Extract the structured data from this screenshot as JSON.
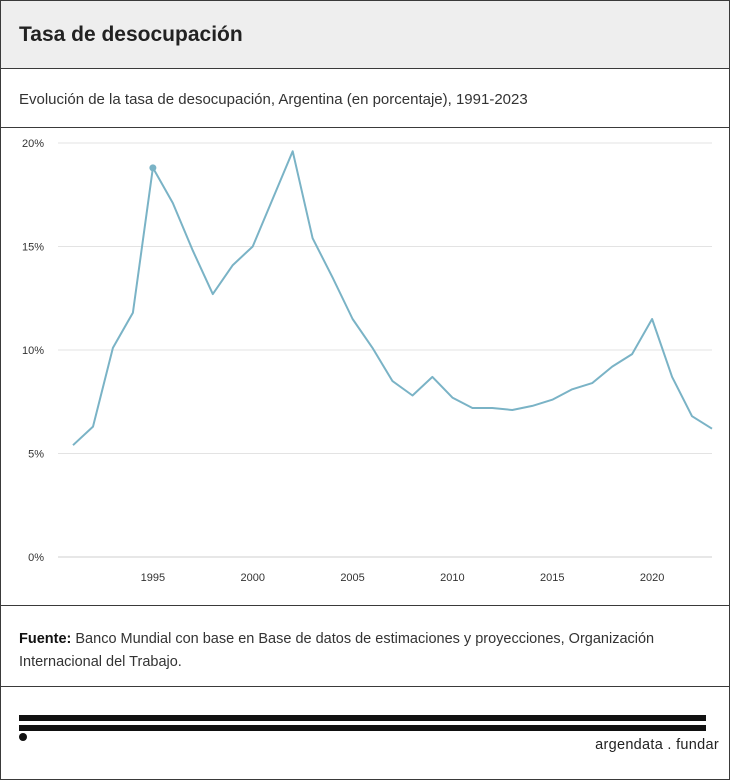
{
  "header": {
    "title": "Tasa de desocupación"
  },
  "subtitle": "Evolución de la tasa de desocupación, Argentina (en porcentaje), 1991-2023",
  "source": {
    "label": "Fuente:",
    "text": " Banco Mundial con base en Base de datos de estimaciones y proyecciones, Organización Internacional del Trabajo."
  },
  "brand": "argendata . fundar",
  "colors": {
    "line": "#7ab3c6",
    "grid": "#e3e3e3"
  },
  "chart_data": {
    "type": "line",
    "title": "Tasa de desocupación",
    "xlabel": "",
    "ylabel": "",
    "xlim": [
      1991,
      2023
    ],
    "ylim": [
      0,
      20
    ],
    "yticks": [
      0,
      5,
      10,
      15,
      20
    ],
    "ytick_labels": [
      "0%",
      "5%",
      "10%",
      "15%",
      "20%"
    ],
    "xticks": [
      1995,
      2000,
      2005,
      2010,
      2015,
      2020
    ],
    "xtick_labels": [
      "1995",
      "2000",
      "2005",
      "2010",
      "2015",
      "2020"
    ],
    "grid": true,
    "highlight_year": 1995,
    "series": [
      {
        "name": "Tasa de desocupación",
        "x": [
          1991,
          1992,
          1993,
          1994,
          1995,
          1996,
          1997,
          1998,
          1999,
          2000,
          2001,
          2002,
          2003,
          2004,
          2005,
          2006,
          2007,
          2008,
          2009,
          2010,
          2011,
          2012,
          2013,
          2014,
          2015,
          2016,
          2017,
          2018,
          2019,
          2020,
          2021,
          2022,
          2023
        ],
        "values": [
          5.4,
          6.3,
          10.1,
          11.8,
          18.8,
          17.1,
          14.8,
          12.7,
          14.1,
          15.0,
          17.3,
          19.6,
          15.4,
          13.5,
          11.5,
          10.1,
          8.5,
          7.8,
          8.7,
          7.7,
          7.2,
          7.2,
          7.1,
          7.3,
          7.6,
          8.1,
          8.4,
          9.2,
          9.8,
          11.5,
          8.7,
          6.8,
          6.2
        ]
      }
    ]
  }
}
